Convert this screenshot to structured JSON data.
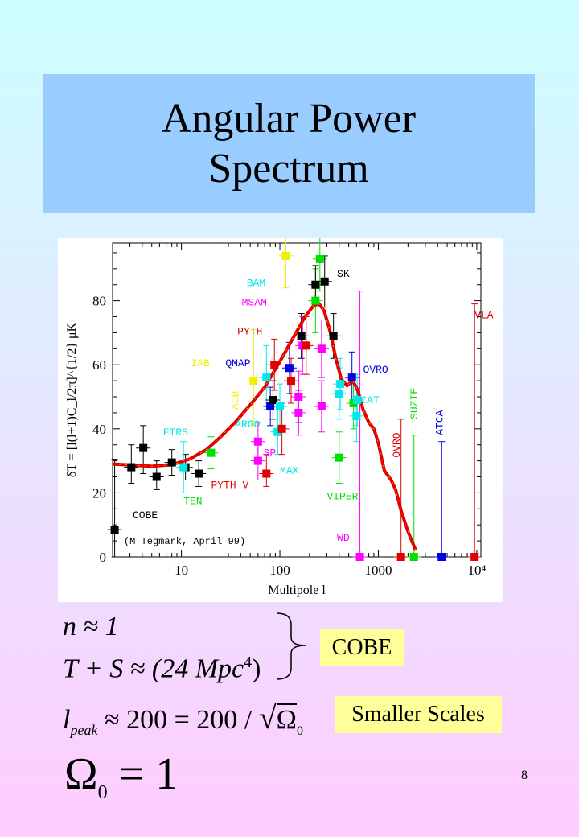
{
  "slide": {
    "title_line1": "Angular Power",
    "title_line2": "Spectrum",
    "page_number": "8"
  },
  "equations": {
    "n": "n ≈ 1",
    "ts_left": "T + S ≈ (24 ",
    "ts_mpc": "Mpc",
    "ts_exp": "4",
    "ts_right": ")",
    "lpeak_l": "l",
    "lpeak_sub": "peak",
    "lpeak_mid": " ≈ 200 = 200 / ",
    "lpeak_omega": "Ω",
    "lpeak_omega_sub": "0",
    "omega_big": "Ω",
    "omega_big_sub": "0",
    "omega_big_rhs": " = 1"
  },
  "labels": {
    "cobe_box": "COBE",
    "smaller_scales_box": "Smaller Scales"
  },
  "colors": {
    "black": "#000000",
    "red": "#e00000",
    "green": "#00e000",
    "blue": "#0000e0",
    "cyan": "#00e8e8",
    "magenta": "#ff00ff",
    "yellow": "#f0f000",
    "curve": "#e00000"
  },
  "chart_data": {
    "type": "scatter",
    "xlabel": "Multipole l",
    "ylabel": "δT = [l(l+1)C_l/2π]^{1/2} μK",
    "x_scale": "log",
    "xlim": [
      2,
      11000
    ],
    "ylim": [
      0,
      98
    ],
    "x_ticks": [
      {
        "v": 10,
        "label": "10"
      },
      {
        "v": 100,
        "label": "100"
      },
      {
        "v": 1000,
        "label": "1000"
      },
      {
        "v": 10000,
        "label": "10⁴"
      }
    ],
    "y_ticks": [
      0,
      20,
      40,
      60,
      80
    ],
    "annotation": "(M Tegmark, April 99)",
    "experiment_labels": [
      {
        "text": "COBE",
        "x": 3.2,
        "y": 12,
        "color": "black"
      },
      {
        "text": "FIRS",
        "x": 6.5,
        "y": 38,
        "color": "cyan"
      },
      {
        "text": "TEN",
        "x": 10.5,
        "y": 16.5,
        "color": "green"
      },
      {
        "text": "PYTH V",
        "x": 20,
        "y": 21.5,
        "color": "red"
      },
      {
        "text": "IAB",
        "x": 12.5,
        "y": 59.5,
        "color": "yellow"
      },
      {
        "text": "QMAP",
        "x": 28,
        "y": 59.5,
        "color": "blue"
      },
      {
        "text": "PYTH",
        "x": 37,
        "y": 69.5,
        "color": "red"
      },
      {
        "text": "MSAM",
        "x": 41,
        "y": 78.5,
        "color": "magenta"
      },
      {
        "text": "BAM",
        "x": 46,
        "y": 84.5,
        "color": "cyan"
      },
      {
        "text": "ARGO",
        "x": 35,
        "y": 40.5,
        "color": "cyan"
      },
      {
        "text": "SP",
        "x": 68,
        "y": 31.5,
        "color": "magenta"
      },
      {
        "text": "MAX",
        "x": 100,
        "y": 26,
        "color": "cyan"
      },
      {
        "text": "SK",
        "x": 380,
        "y": 87.5,
        "color": "black"
      },
      {
        "text": "OVRO",
        "x": 700,
        "y": 57.5,
        "color": "blue"
      },
      {
        "text": "CAT",
        "x": 660,
        "y": 48,
        "color": "cyan"
      },
      {
        "text": "VIPER",
        "x": 300,
        "y": 18,
        "color": "green"
      },
      {
        "text": "WD",
        "x": 380,
        "y": 5,
        "color": "magenta"
      },
      {
        "text": "VLA",
        "x": 9500,
        "y": 74.5,
        "color": "red"
      }
    ],
    "rotated_labels": [
      {
        "text": "ACB",
        "x": 38,
        "y": 46,
        "color": "yellow"
      },
      {
        "text": "OVRO",
        "x": 1650,
        "y": 31,
        "color": "red"
      },
      {
        "text": "SUZIE",
        "x": 2500,
        "y": 43,
        "color": "green"
      },
      {
        "text": "ATCA",
        "x": 4500,
        "y": 38,
        "color": "blue"
      }
    ],
    "points": [
      {
        "x": 2.1,
        "y": 8.5,
        "yerr": [
          8.5,
          22
        ],
        "color": "black"
      },
      {
        "x": 3.1,
        "y": 28,
        "yerr": [
          5,
          7
        ],
        "color": "black"
      },
      {
        "x": 4.1,
        "y": 34,
        "yerr": [
          8,
          7
        ],
        "color": "black"
      },
      {
        "x": 5.6,
        "y": 25,
        "yerr": [
          4,
          5
        ],
        "color": "black"
      },
      {
        "x": 8,
        "y": 29.5,
        "yerr": [
          4,
          4
        ],
        "color": "black"
      },
      {
        "x": 11,
        "y": 28,
        "yerr": [
          4,
          4
        ],
        "color": "black"
      },
      {
        "x": 15,
        "y": 26,
        "yerr": [
          4,
          4
        ],
        "color": "black"
      },
      {
        "x": 10.5,
        "y": 28,
        "yerr": [
          8,
          8
        ],
        "color": "cyan"
      },
      {
        "x": 20,
        "y": 32.5,
        "yerr": [
          5,
          5
        ],
        "color": "green"
      },
      {
        "x": 73,
        "y": 26,
        "yerr": [
          4,
          6
        ],
        "color": "red"
      },
      {
        "x": 54,
        "y": 55,
        "yerr": [
          14,
          16
        ],
        "color": "yellow"
      },
      {
        "x": 60,
        "y": 36,
        "yerr": [
          6,
          6
        ],
        "color": "magenta"
      },
      {
        "x": 60,
        "y": 30,
        "yerr": [
          6,
          6
        ],
        "color": "magenta"
      },
      {
        "x": 73,
        "y": 56,
        "yerr": [
          10,
          10
        ],
        "color": "cyan"
      },
      {
        "x": 80,
        "y": 47,
        "yerr": [
          6,
          6
        ],
        "color": "blue"
      },
      {
        "x": 85,
        "y": 49,
        "yerr": [
          6,
          6
        ],
        "color": "black"
      },
      {
        "x": 88,
        "y": 60,
        "yerr": [
          8,
          8
        ],
        "color": "red"
      },
      {
        "x": 95,
        "y": 39,
        "yerr": [
          7,
          9
        ],
        "color": "cyan"
      },
      {
        "x": 100,
        "y": 47,
        "yerr": [
          7,
          7
        ],
        "color": "cyan"
      },
      {
        "x": 105,
        "y": 40,
        "yerr": [
          8,
          8
        ],
        "color": "red"
      },
      {
        "x": 115,
        "y": 94,
        "yerr": [
          10,
          10
        ],
        "color": "yellow"
      },
      {
        "x": 125,
        "y": 59,
        "yerr": [
          8,
          8
        ],
        "color": "blue"
      },
      {
        "x": 130,
        "y": 55,
        "yerr": [
          7,
          7
        ],
        "color": "red"
      },
      {
        "x": 155,
        "y": 50,
        "yerr": [
          8,
          8
        ],
        "color": "magenta"
      },
      {
        "x": 155,
        "y": 45,
        "yerr": [
          7,
          7
        ],
        "color": "magenta"
      },
      {
        "x": 165,
        "y": 69,
        "yerr": [
          7,
          7
        ],
        "color": "black"
      },
      {
        "x": 170,
        "y": 66,
        "yerr": [
          9,
          9
        ],
        "color": "magenta"
      },
      {
        "x": 185,
        "y": 66,
        "yerr": [
          9,
          9
        ],
        "color": "red"
      },
      {
        "x": 230,
        "y": 80,
        "yerr": [
          10,
          10
        ],
        "color": "green"
      },
      {
        "x": 230,
        "y": 85,
        "yerr": [
          6,
          6
        ],
        "color": "black"
      },
      {
        "x": 255,
        "y": 93,
        "yerr": [
          10,
          10
        ],
        "color": "green"
      },
      {
        "x": 265,
        "y": 47,
        "yerr": [
          8,
          8
        ],
        "color": "magenta"
      },
      {
        "x": 265,
        "y": 65,
        "yerr": [
          9,
          9
        ],
        "color": "magenta"
      },
      {
        "x": 285,
        "y": 86,
        "yerr": [
          8,
          8
        ],
        "color": "black"
      },
      {
        "x": 350,
        "y": 69,
        "yerr": [
          7,
          7
        ],
        "color": "black"
      },
      {
        "x": 400,
        "y": 31,
        "yerr": [
          8,
          8
        ],
        "color": "green"
      },
      {
        "x": 400,
        "y": 51,
        "yerr": [
          8,
          8
        ],
        "color": "cyan"
      },
      {
        "x": 410,
        "y": 54,
        "yerr": [
          8,
          8
        ],
        "color": "cyan"
      },
      {
        "x": 540,
        "y": 56,
        "yerr": [
          8,
          8
        ],
        "color": "blue"
      },
      {
        "x": 560,
        "y": 48,
        "yerr": [
          8,
          8
        ],
        "color": "green"
      },
      {
        "x": 600,
        "y": 44,
        "yerr": [
          8,
          8
        ],
        "color": "cyan"
      },
      {
        "x": 610,
        "y": 49,
        "yerr": [
          8,
          8
        ],
        "color": "cyan"
      },
      {
        "x": 650,
        "y": 0,
        "yerr": [
          0,
          83
        ],
        "color": "magenta"
      },
      {
        "x": 1700,
        "y": 0,
        "yerr": [
          0,
          43
        ],
        "color": "red"
      },
      {
        "x": 2300,
        "y": 0,
        "yerr": [
          0,
          38
        ],
        "color": "green"
      },
      {
        "x": 4400,
        "y": 0,
        "yerr": [
          0,
          36
        ],
        "color": "blue"
      },
      {
        "x": 9500,
        "y": 0,
        "yerr": [
          0,
          79
        ],
        "color": "red"
      }
    ],
    "curve": [
      [
        2,
        29
      ],
      [
        3,
        28.7
      ],
      [
        5,
        28.3
      ],
      [
        8,
        28.8
      ],
      [
        12,
        30.5
      ],
      [
        18,
        33.5
      ],
      [
        25,
        37.5
      ],
      [
        35,
        42
      ],
      [
        50,
        47.5
      ],
      [
        70,
        53
      ],
      [
        100,
        61
      ],
      [
        140,
        69
      ],
      [
        180,
        75
      ],
      [
        220,
        78.5
      ],
      [
        250,
        79
      ],
      [
        280,
        77
      ],
      [
        320,
        71
      ],
      [
        370,
        62
      ],
      [
        420,
        55.5
      ],
      [
        480,
        53.5
      ],
      [
        550,
        55
      ],
      [
        620,
        52
      ],
      [
        700,
        46
      ],
      [
        800,
        42
      ],
      [
        900,
        40
      ],
      [
        1000,
        35.5
      ],
      [
        1150,
        27
      ],
      [
        1350,
        24
      ],
      [
        1500,
        21
      ],
      [
        1700,
        14.5
      ],
      [
        2000,
        8
      ],
      [
        2400,
        2
      ]
    ]
  }
}
